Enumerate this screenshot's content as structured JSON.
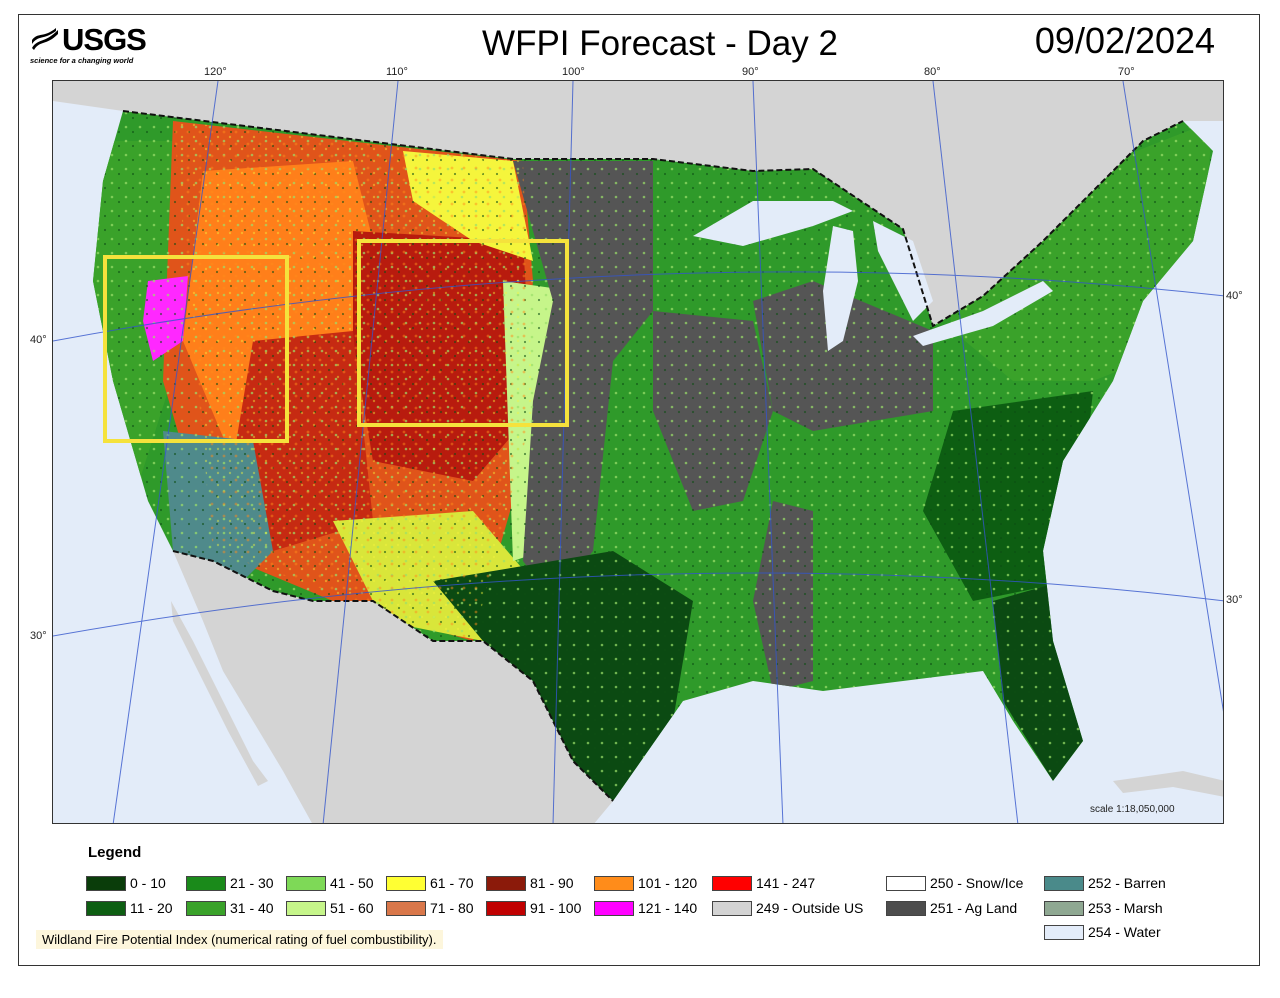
{
  "header": {
    "logo_text": "USGS",
    "logo_tagline": "science for a changing world",
    "title": "WFPI Forecast - Day 2",
    "date": "09/02/2024"
  },
  "graticule": {
    "longitude_labels": [
      "120°",
      "110°",
      "100°",
      "90°",
      "80°",
      "70°"
    ],
    "latitude_labels_left": [
      "40°",
      "30°"
    ],
    "latitude_labels_right": [
      "40°",
      "30°"
    ]
  },
  "map": {
    "scale_text": "scale 1:18,050,000",
    "colors": {
      "water": "#e3ecf9",
      "outside_us": "#d4d4d4",
      "ag_land": "#555555",
      "barren": "#4f8a8b",
      "green_dark": "#0b4a12",
      "green_mid": "#2f9a2a",
      "green_light": "#82d84a",
      "yellow": "#f5f53c",
      "orange": "#ff7f1a",
      "red_dark": "#b81b0e",
      "magenta": "#ff28ff",
      "highlight_box": "#f5e23c"
    }
  },
  "legend": {
    "title": "Legend",
    "items": [
      {
        "label": "0 - 10",
        "color": "#0a3d0a"
      },
      {
        "label": "11 - 20",
        "color": "#0d5e12"
      },
      {
        "label": "21 - 30",
        "color": "#1a8a1a"
      },
      {
        "label": "31 - 40",
        "color": "#3aa22a"
      },
      {
        "label": "41 - 50",
        "color": "#7ed957"
      },
      {
        "label": "51 - 60",
        "color": "#c6f58a"
      },
      {
        "label": "61 - 70",
        "color": "#ffff33"
      },
      {
        "label": "71 - 80",
        "color": "#d9774a"
      },
      {
        "label": "81 - 90",
        "color": "#8b1a0a"
      },
      {
        "label": "91 - 100",
        "color": "#c00000"
      },
      {
        "label": "101 - 120",
        "color": "#ff8c1a"
      },
      {
        "label": "121 - 140",
        "color": "#ff00ff"
      },
      {
        "label": "141 - 247",
        "color": "#ff0000"
      },
      {
        "label": "249 - Outside US",
        "color": "#d3d3d3"
      },
      {
        "label": "250 - Snow/Ice",
        "color": "#ffffff"
      },
      {
        "label": "251 - Ag Land",
        "color": "#4d4d4d"
      },
      {
        "label": "252 - Barren",
        "color": "#4a8a8a"
      },
      {
        "label": "253 - Marsh",
        "color": "#8fa892"
      },
      {
        "label": "254 - Water",
        "color": "#e3ecf9"
      }
    ],
    "note": "Wildland Fire Potential Index (numerical rating of fuel combustibility)."
  }
}
